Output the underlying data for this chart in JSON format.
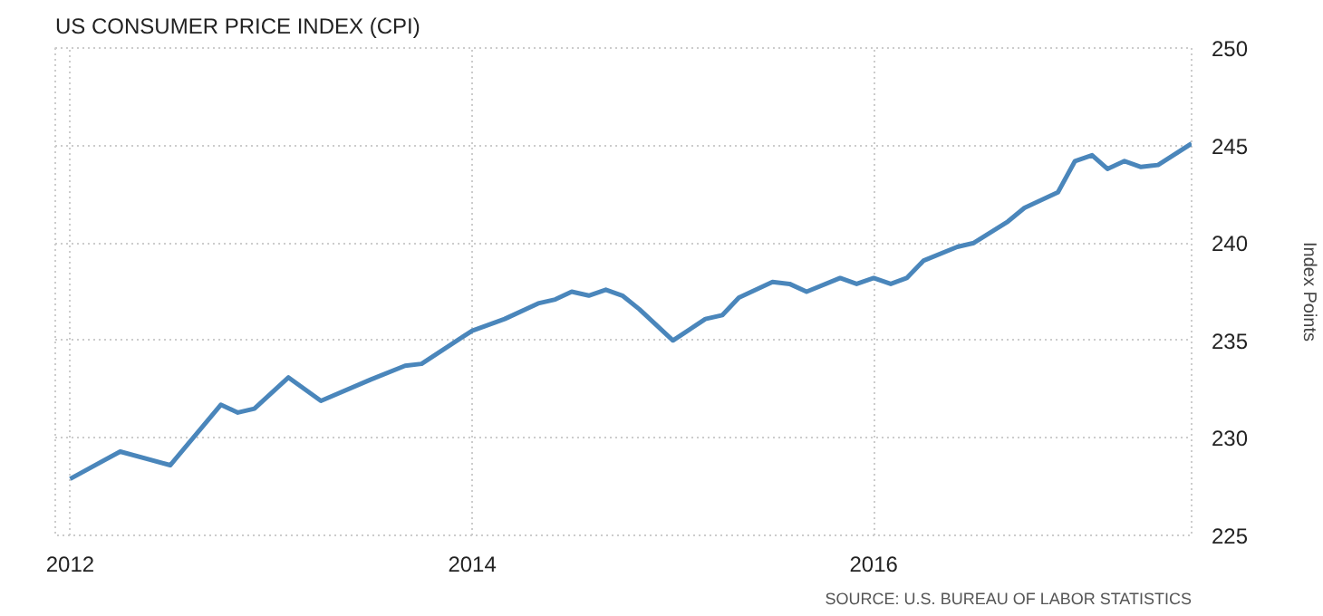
{
  "chart_data": {
    "type": "line",
    "title": "US CONSUMER PRICE INDEX (CPI)",
    "ylabel": "Index Points",
    "annotations": [
      "SOURCE: U.S. BUREAU OF LABOR STATISTICS"
    ],
    "x": [
      "2012-01",
      "2012-04",
      "2012-07",
      "2012-10",
      "2012-11",
      "2012-12",
      "2013-02",
      "2013-04",
      "2013-07",
      "2013-09",
      "2013-10",
      "2014-01",
      "2014-03",
      "2014-05",
      "2014-06",
      "2014-07",
      "2014-08",
      "2014-09",
      "2014-10",
      "2014-11",
      "2015-01",
      "2015-03",
      "2015-04",
      "2015-05",
      "2015-07",
      "2015-08",
      "2015-09",
      "2015-11",
      "2015-12",
      "2016-01",
      "2016-02",
      "2016-03",
      "2016-04",
      "2016-06",
      "2016-07",
      "2016-09",
      "2016-10",
      "2016-12",
      "2017-01",
      "2017-02",
      "2017-03",
      "2017-04",
      "2017-05",
      "2017-06",
      "2017-08"
    ],
    "series": [
      {
        "color": "#4a86bb",
        "values": [
          227.9,
          229.3,
          228.6,
          231.7,
          231.3,
          231.5,
          233.1,
          231.9,
          233.0,
          233.7,
          233.8,
          235.5,
          236.1,
          236.9,
          237.1,
          237.5,
          237.3,
          237.6,
          237.3,
          236.6,
          235.0,
          236.1,
          236.3,
          237.2,
          238.0,
          237.9,
          237.5,
          238.2,
          237.9,
          238.2,
          237.9,
          238.2,
          239.1,
          239.8,
          240.0,
          241.1,
          241.8,
          242.6,
          244.2,
          244.5,
          243.8,
          244.2,
          243.9,
          244.0,
          245.1
        ]
      }
    ],
    "xlim": [
      "2011-12-05",
      "2017-08-01"
    ],
    "xticks": [
      "2012",
      "2014",
      "2016"
    ],
    "ylim": [
      225,
      250
    ],
    "yticks": [
      225,
      230,
      235,
      240,
      245,
      250
    ],
    "grid": true,
    "line_style": "solid",
    "marker": "none"
  }
}
